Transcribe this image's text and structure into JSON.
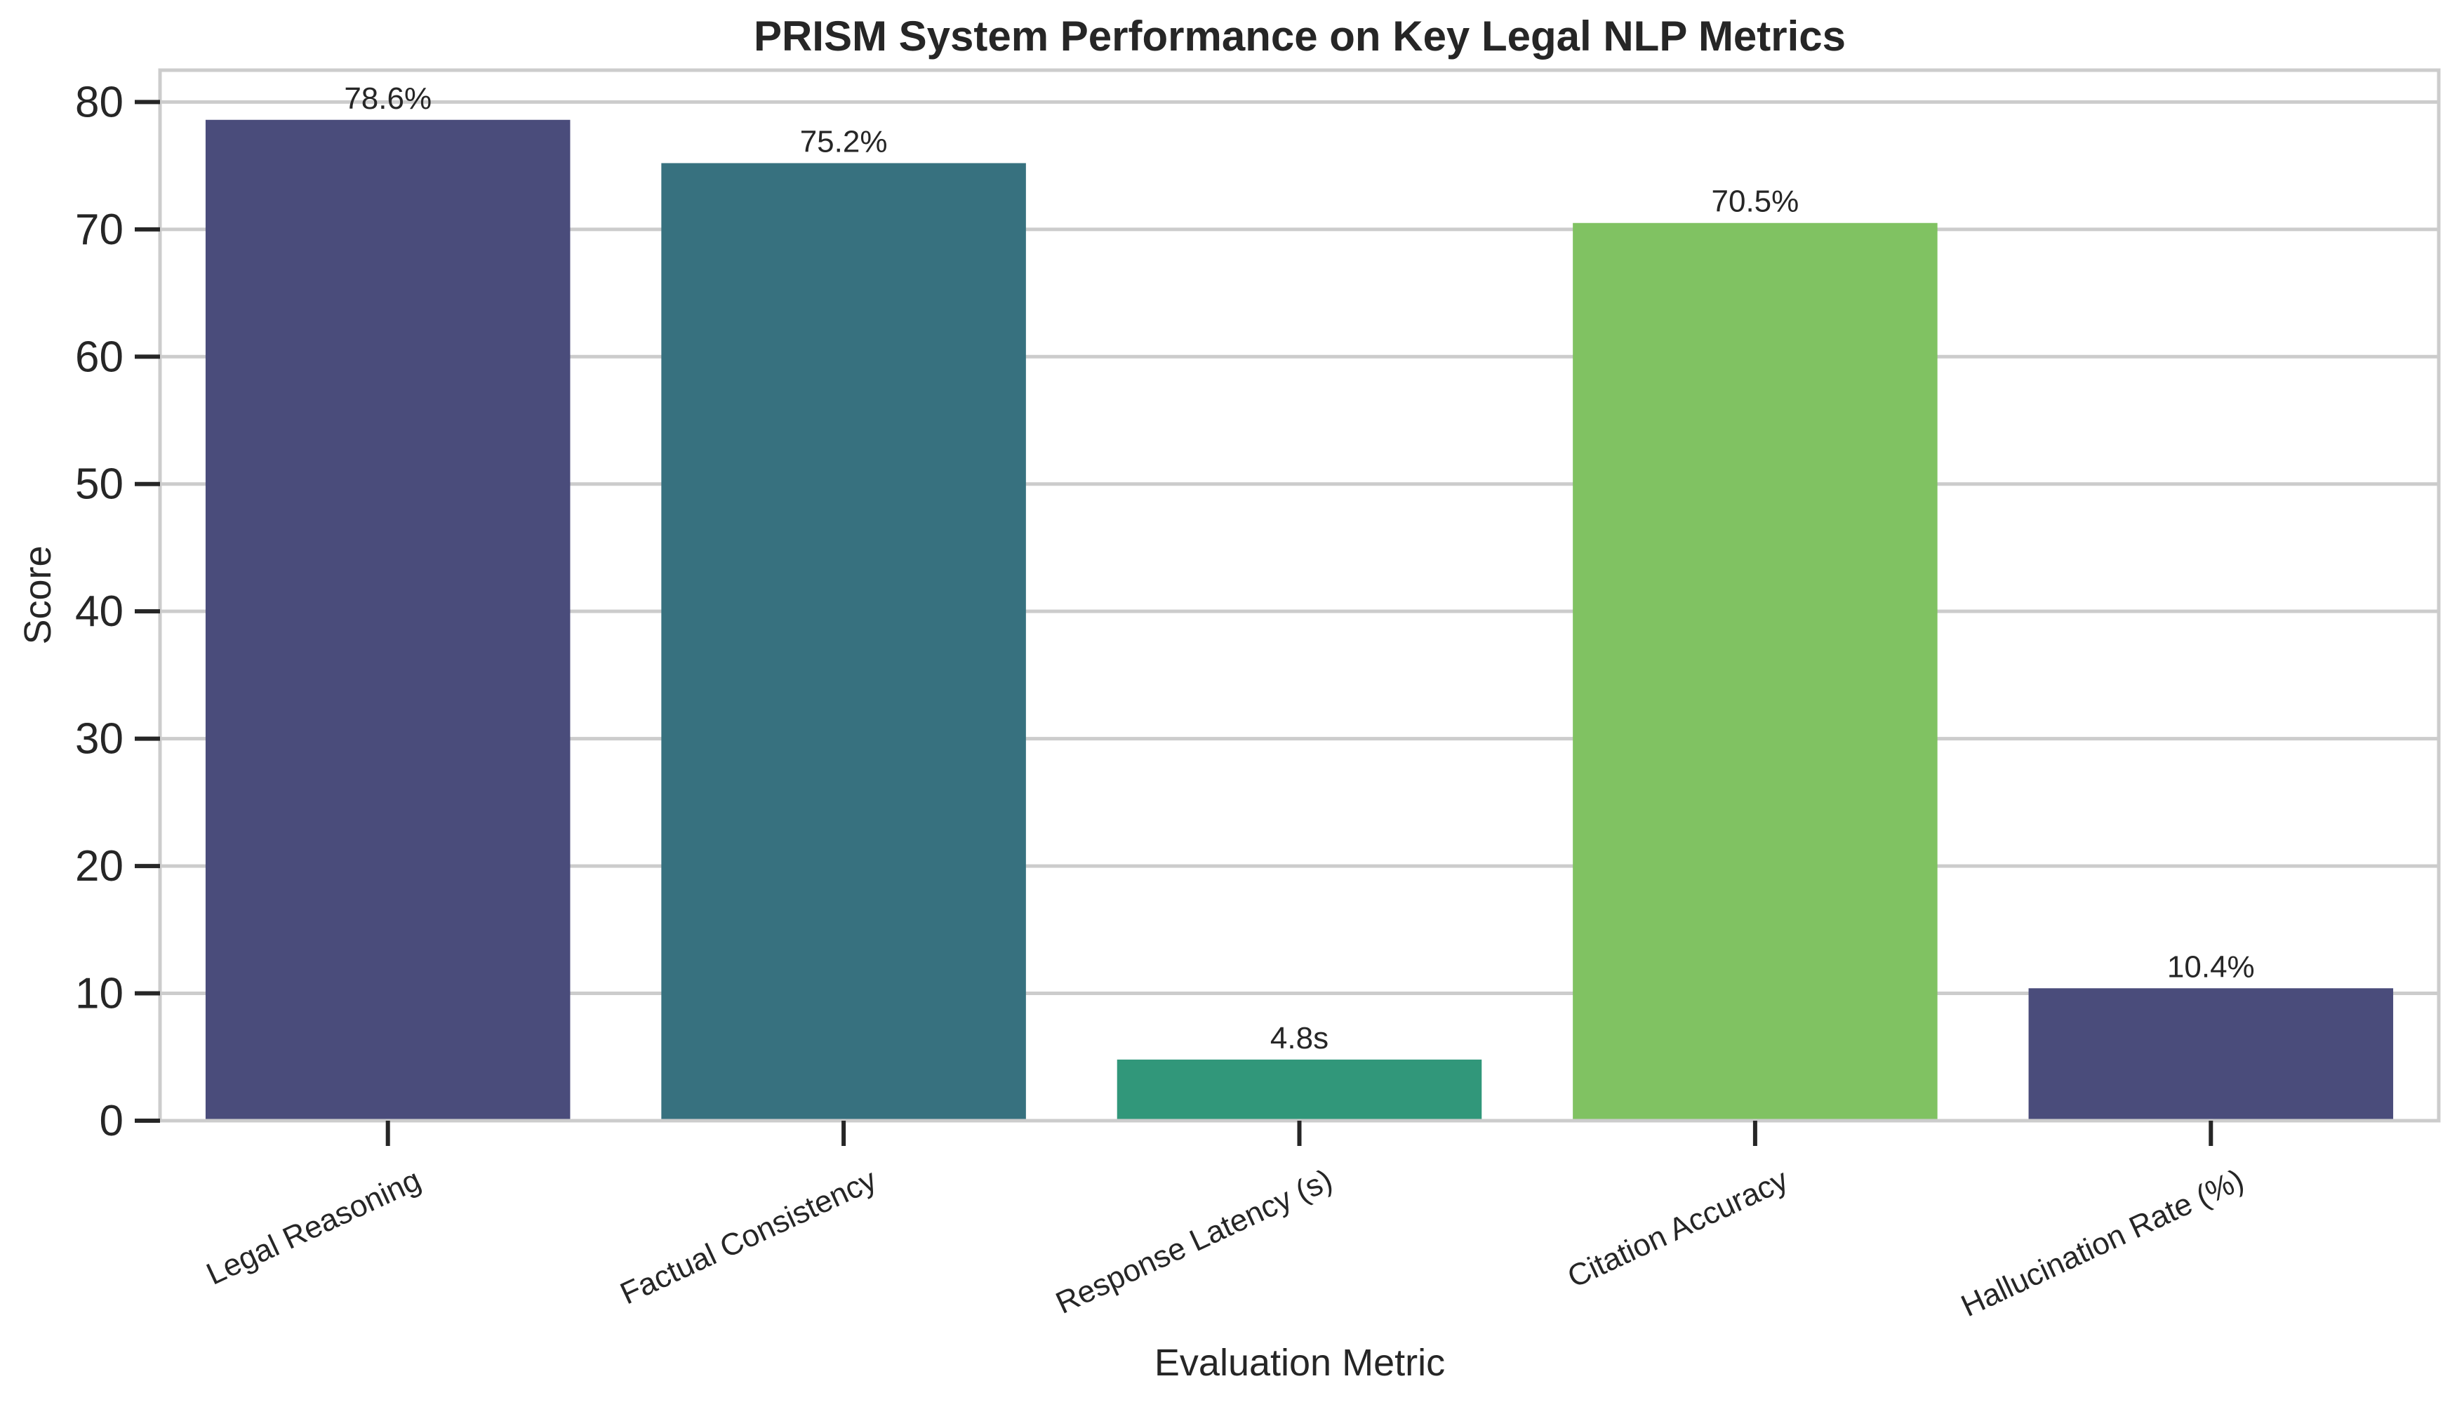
{
  "chart_data": {
    "type": "bar",
    "title": "PRISM System Performance on Key Legal NLP Metrics",
    "xlabel": "Evaluation Metric",
    "ylabel": "Score",
    "categories": [
      "Legal Reasoning",
      "Factual Consistency",
      "Response Latency (s)",
      "Citation Accuracy",
      "Hallucination Rate (%)"
    ],
    "values": [
      78.6,
      75.2,
      4.8,
      70.5,
      10.4
    ],
    "value_labels": [
      "78.6%",
      "75.2%",
      "4.8s",
      "70.5%",
      "10.4%"
    ],
    "bar_colors": [
      "#4a4c7b",
      "#37717f",
      "#31977a",
      "#80c262",
      "#4a4c7b"
    ],
    "ylim": [
      0,
      82.5
    ],
    "yticks": [
      "0",
      "10",
      "20",
      "30",
      "40",
      "50",
      "60",
      "70",
      "80"
    ],
    "grid": true,
    "legend": "none"
  }
}
